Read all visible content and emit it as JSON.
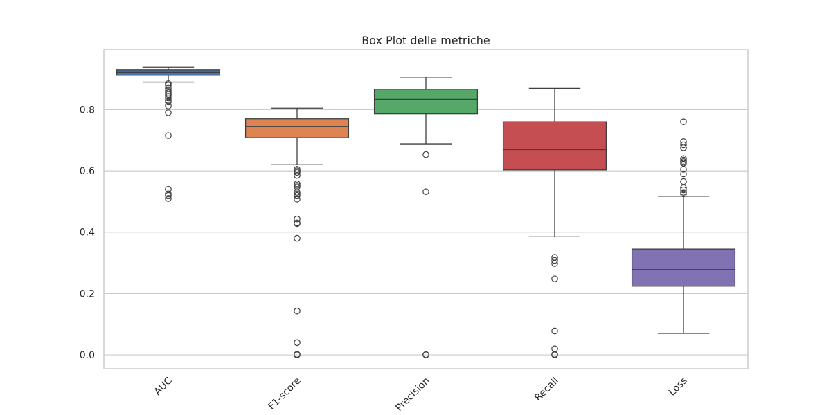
{
  "chart_data": {
    "type": "box",
    "title": "Box Plot delle metriche",
    "xlabel": "",
    "ylabel": "",
    "ylim": [
      -0.045,
      0.995
    ],
    "yticks": [
      0.0,
      0.2,
      0.4,
      0.6,
      0.8
    ],
    "ytick_labels": [
      "0.0",
      "0.2",
      "0.4",
      "0.6",
      "0.8"
    ],
    "grid": true,
    "legend": "none",
    "categories": [
      "AUC",
      "F1-score",
      "Precision",
      "Recall",
      "Loss"
    ],
    "colors": [
      "#4c72b0",
      "#dd8452",
      "#55a868",
      "#c44e52",
      "#8172b3"
    ],
    "boxes": [
      {
        "name": "AUC",
        "whisker_low": 0.89,
        "q1": 0.912,
        "median": 0.922,
        "q3": 0.93,
        "whisker_high": 0.938,
        "outliers": [
          0.885,
          0.88,
          0.87,
          0.862,
          0.856,
          0.85,
          0.845,
          0.838,
          0.83,
          0.825,
          0.812,
          0.79,
          0.715,
          0.54,
          0.525,
          0.52,
          0.51
        ]
      },
      {
        "name": "F1-score",
        "whisker_low": 0.62,
        "q1": 0.708,
        "median": 0.745,
        "q3": 0.77,
        "whisker_high": 0.805,
        "outliers": [
          0.605,
          0.6,
          0.595,
          0.585,
          0.558,
          0.553,
          0.548,
          0.53,
          0.525,
          0.52,
          0.508,
          0.443,
          0.43,
          0.428,
          0.38,
          0.143,
          0.04,
          0.002,
          0.0
        ]
      },
      {
        "name": "Precision",
        "whisker_low": 0.688,
        "q1": 0.786,
        "median": 0.834,
        "q3": 0.867,
        "whisker_high": 0.905,
        "outliers": [
          0.653,
          0.532,
          0.001,
          0.0
        ]
      },
      {
        "name": "Recall",
        "whisker_low": 0.385,
        "q1": 0.603,
        "median": 0.669,
        "q3": 0.76,
        "whisker_high": 0.87,
        "outliers": [
          0.318,
          0.308,
          0.298,
          0.248,
          0.078,
          0.02,
          0.002,
          0.0
        ]
      },
      {
        "name": "Loss",
        "whisker_low": 0.07,
        "q1": 0.224,
        "median": 0.278,
        "q3": 0.345,
        "whisker_high": 0.517,
        "outliers": [
          0.76,
          0.695,
          0.685,
          0.675,
          0.64,
          0.635,
          0.63,
          0.625,
          0.605,
          0.59,
          0.565,
          0.545,
          0.538,
          0.53,
          0.525
        ]
      }
    ]
  }
}
